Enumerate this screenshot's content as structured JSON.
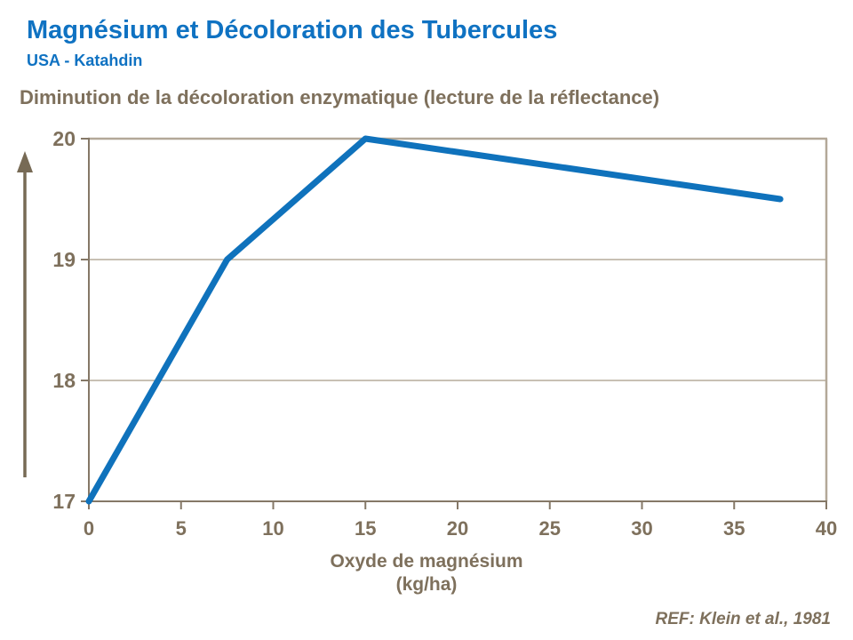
{
  "header": {
    "title": "Magnésium et Décoloration des Tubercules",
    "subtitle": "USA - Katahdin"
  },
  "section_heading": "Diminution de la décoloration enzymatique (lecture de la réflectance)",
  "footer": {
    "reference": "REF: Klein et al., 1981"
  },
  "colors": {
    "title_blue": "#0F72C2",
    "line_blue": "#0F72BC",
    "text_brown": "#7E705C",
    "axis_brown": "#857867",
    "frame_tan": "#B3A898",
    "grid_tan": "#A79B88",
    "arrow_brown": "#776A55"
  },
  "chart_data": {
    "type": "line",
    "x": [
      0,
      7.5,
      15,
      37.5
    ],
    "y": [
      17,
      19,
      20,
      19.5
    ],
    "x_ticks": [
      0,
      5,
      10,
      15,
      20,
      25,
      30,
      35,
      40
    ],
    "y_ticks": [
      17,
      18,
      19,
      20
    ],
    "xlim": [
      0,
      40
    ],
    "ylim": [
      17,
      20
    ],
    "xlabel_line1": "Oxyde de magnésium",
    "xlabel_line2": "(kg/ha)",
    "ylabel": "",
    "grid": "horizontal",
    "legend": "none"
  }
}
